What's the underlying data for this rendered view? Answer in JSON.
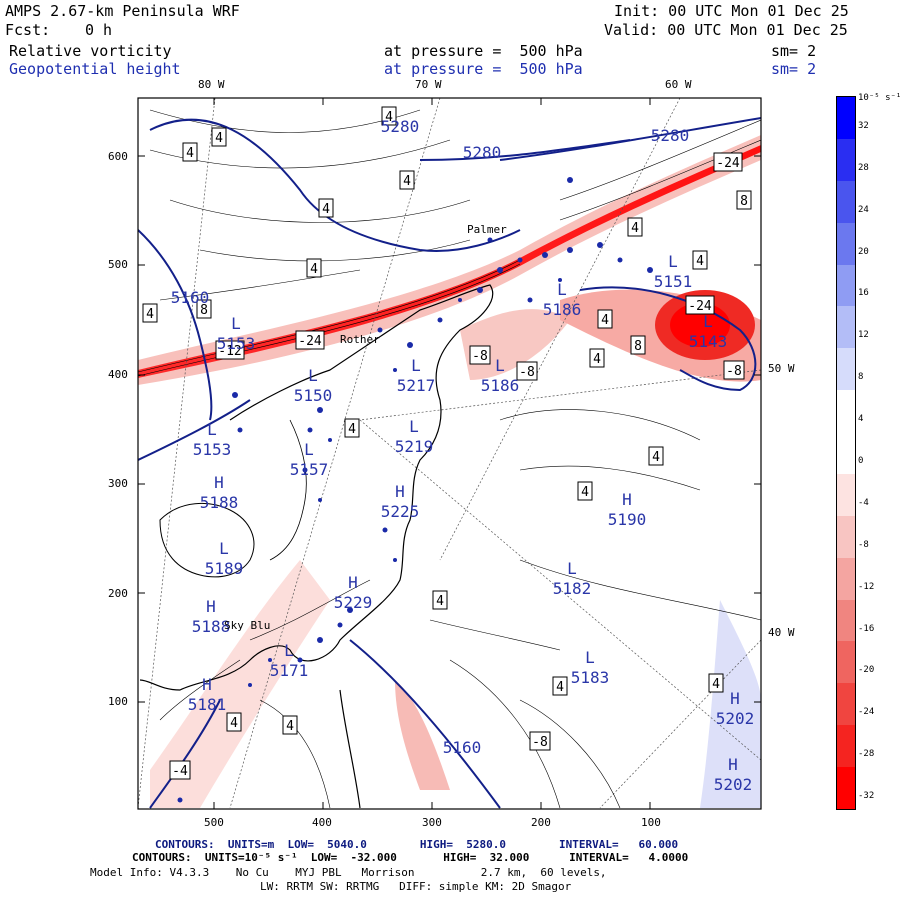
{
  "header": {
    "title": "AMPS 2.67-km Peninsula WRF",
    "fcst_label": "Fcst:",
    "fcst_value": "0 h",
    "init": "Init: 00 UTC Mon 01 Dec 25",
    "valid": "Valid: 00 UTC Mon 01 Dec 25",
    "field1": {
      "name": "Relative vorticity",
      "pressure": "at pressure =  500 hPa",
      "sm": "sm= 2"
    },
    "field2": {
      "name": "Geopotential height",
      "pressure": "at pressure =  500 hPa",
      "sm": "sm= 2"
    }
  },
  "map": {
    "lon_labels": [
      "80 W",
      "70 W",
      "60 W",
      "50 W",
      "40 W"
    ],
    "y_ticks": [
      "600",
      "500",
      "400",
      "300",
      "200",
      "100"
    ],
    "x_ticks": [
      "500",
      "400",
      "300",
      "200",
      "100"
    ],
    "place_labels": [
      "Palmer",
      "Rother",
      "Sky Blu"
    ],
    "vort_box_labels": [
      "4",
      "4",
      "4",
      "4",
      "4",
      "4",
      "4",
      "8",
      "4",
      "-12",
      "-24",
      "-8",
      "-8",
      "-24",
      "4",
      "8",
      "4",
      "-8",
      "4",
      "4",
      "4",
      "4",
      "4",
      "-4",
      "-8",
      "4",
      "8",
      "-24",
      "4",
      "4",
      "4"
    ],
    "height_contour_labels": [
      "5280",
      "5280",
      "5280",
      "5160",
      "5160"
    ],
    "centers": [
      {
        "type": "L",
        "value": "5153"
      },
      {
        "type": "L",
        "value": "5151"
      },
      {
        "type": "L",
        "value": "5143"
      },
      {
        "type": "L",
        "value": "5186"
      },
      {
        "type": "L",
        "value": "5186"
      },
      {
        "type": "L",
        "value": "5217"
      },
      {
        "type": "L",
        "value": "5150"
      },
      {
        "type": "L",
        "value": "5153"
      },
      {
        "type": "L",
        "value": "5157"
      },
      {
        "type": "L",
        "value": "5219"
      },
      {
        "type": "H",
        "value": "5225"
      },
      {
        "type": "H",
        "value": "5188"
      },
      {
        "type": "H",
        "value": "5190"
      },
      {
        "type": "L",
        "value": "5182"
      },
      {
        "type": "H",
        "value": "5229"
      },
      {
        "type": "L",
        "value": "5189"
      },
      {
        "type": "H",
        "value": "5188"
      },
      {
        "type": "L",
        "value": "5171"
      },
      {
        "type": "L",
        "value": "5183"
      },
      {
        "type": "H",
        "value": "5181"
      },
      {
        "type": "H",
        "value": "5202"
      },
      {
        "type": "H",
        "value": "5202"
      }
    ]
  },
  "colorbar": {
    "unit_label": "10⁻⁵ s⁻¹",
    "levels": [
      "32",
      "28",
      "24",
      "20",
      "16",
      "12",
      "8",
      "4",
      "0",
      "-4",
      "-8",
      "-12",
      "-16",
      "-20",
      "-24",
      "-28",
      "-32"
    ],
    "colors": [
      "#0000ff",
      "#2a2ef2",
      "#4a55ee",
      "#6b78ef",
      "#8f9cf3",
      "#b3bdf7",
      "#d6dcfb",
      "#ffffff",
      "#ffffff",
      "#fde3e1",
      "#f8c5c2",
      "#f4a5a1",
      "#f08580",
      "#ef6560",
      "#f04540",
      "#f52420",
      "#ff0000"
    ]
  },
  "footer": {
    "line1": "CONTOURS:  UNITS=m  LOW=  5040.0        HIGH=  5280.0        INTERVAL=   60.000",
    "line2": "CONTOURS:  UNITS=10⁻⁵ s⁻¹  LOW=  -32.000       HIGH=  32.000      INTERVAL=   4.0000",
    "line3": "Model Info: V4.3.3    No Cu    MYJ PBL   Morrison          2.7 km,  60 levels,",
    "line4": "LW: RRTM SW: RRTMG   DIFF: simple KM: 2D Smagor"
  }
}
